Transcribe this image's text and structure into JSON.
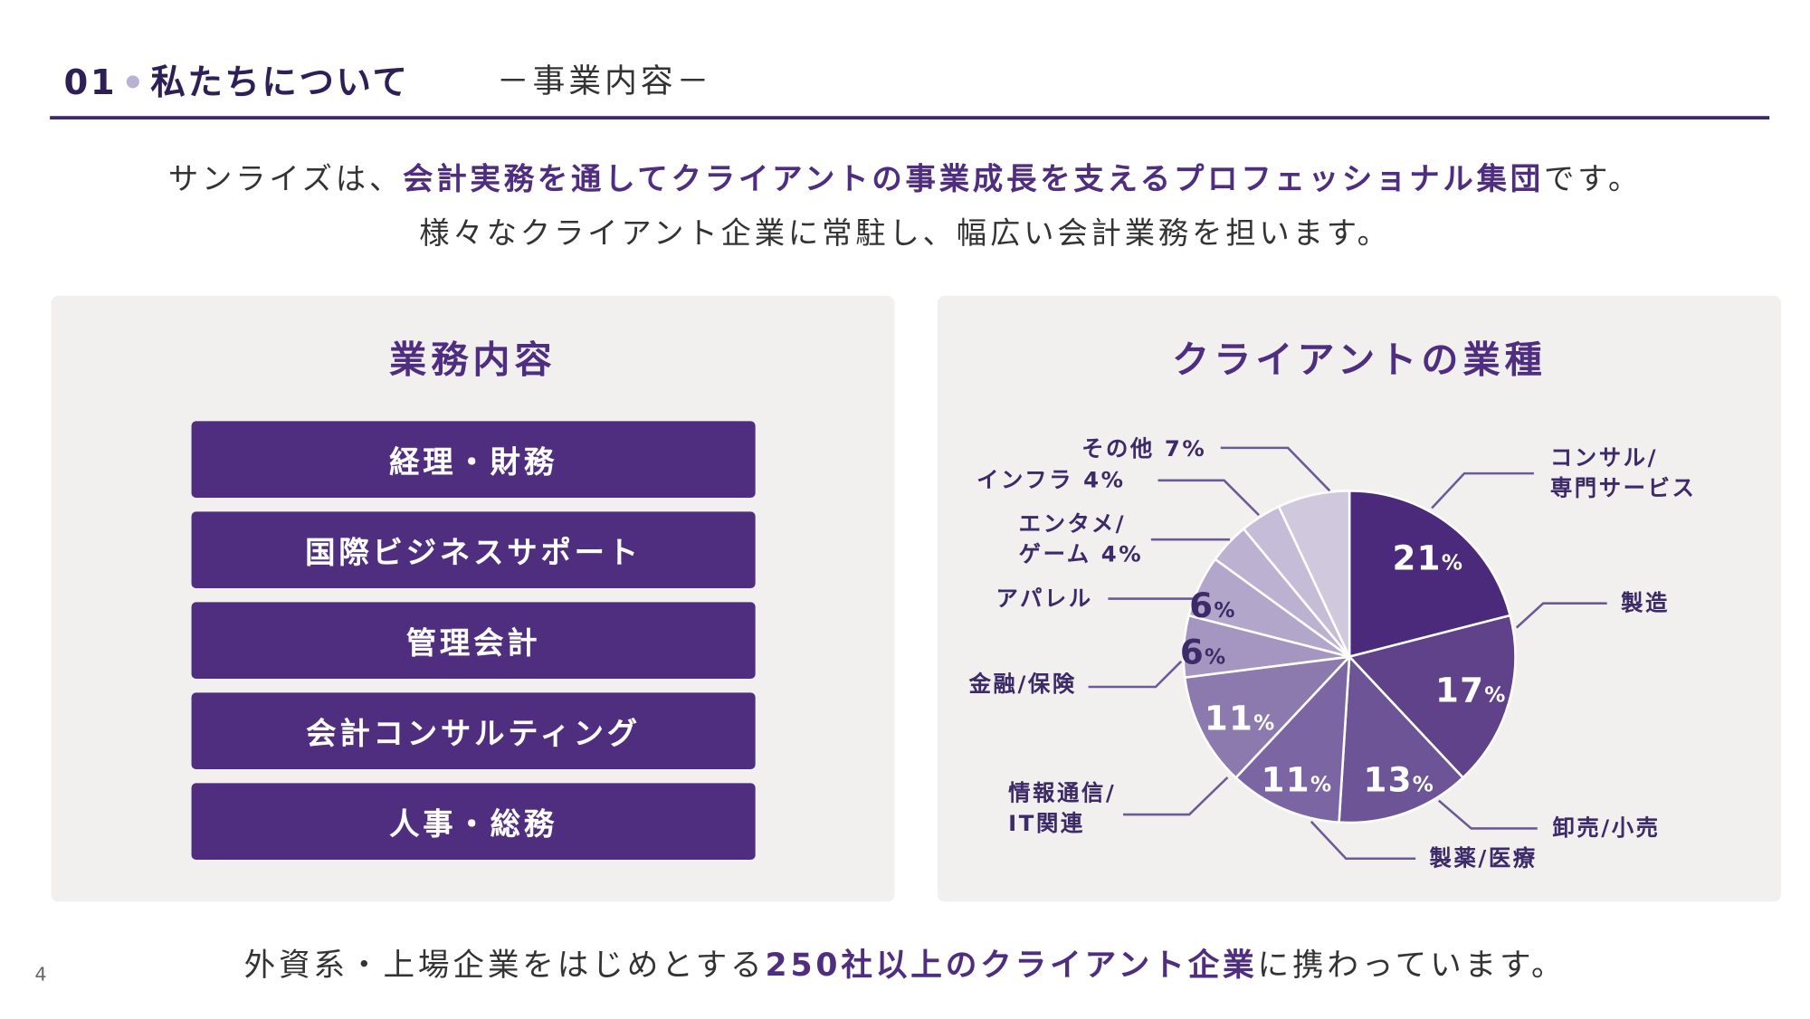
{
  "header": {
    "number": "01",
    "title": "私たちについて",
    "subtitle": "－事業内容－"
  },
  "lead": {
    "line1_pre": "サンライズは、",
    "line1_highlight": "会計実務を通してクライアントの事業成長を支えるプロフェッショナル集団",
    "line1_post": "です。",
    "line2": "様々なクライアント企業に常駐し、幅広い会計業務を担います。"
  },
  "services": {
    "heading": "業務内容",
    "items": [
      "経理・財務",
      "国際ビジネスサポート",
      "管理会計",
      "会計コンサルティング",
      "人事・総務"
    ]
  },
  "clients": {
    "heading": "クライアントの業種"
  },
  "chart_data": {
    "type": "pie",
    "title": "クライアントの業種",
    "unit": "%",
    "slices": [
      {
        "label": "コンサル/専門サービス",
        "value": 21,
        "color": "#4b2a7b"
      },
      {
        "label": "製造",
        "value": 17,
        "color": "#5f428a"
      },
      {
        "label": "卸売/小売",
        "value": 13,
        "color": "#6c5496"
      },
      {
        "label": "製薬/医療",
        "value": 11,
        "color": "#7b66a3"
      },
      {
        "label": "情報通信/IT関連",
        "value": 11,
        "color": "#8c7aae"
      },
      {
        "label": "金融/保険",
        "value": 6,
        "color": "#a496c0"
      },
      {
        "label": "アパレル",
        "value": 6,
        "color": "#b2a6ca"
      },
      {
        "label": "エンタメ/ゲーム",
        "value": 4,
        "color": "#bcb1d0"
      },
      {
        "label": "インフラ",
        "value": 4,
        "color": "#c5bcd8"
      },
      {
        "label": "その他",
        "value": 7,
        "color": "#d0c9dd"
      }
    ],
    "start": "12 o'clock",
    "direction": "clockwise"
  },
  "labels": {
    "consul": [
      "コンサル/",
      "専門サービス"
    ],
    "mfg": "製造",
    "retail": "卸売/小売",
    "pharma": "製薬/医療",
    "it": [
      "情報通信/",
      "IT関連"
    ],
    "finance": "金融/保険",
    "apparel": "アパレル",
    "ent": [
      "エンタメ/",
      "ゲーム 4%"
    ],
    "infra": "インフラ 4%",
    "other": "その他 7%"
  },
  "footer": {
    "pre": "外資系・上場企業をはじめとする",
    "highlight": "250社以上のクライアント企業",
    "post": "に携わっています。",
    "page": "4"
  },
  "colors": {
    "accent": "#4f2d7f",
    "panel": "#f2f0ef"
  }
}
